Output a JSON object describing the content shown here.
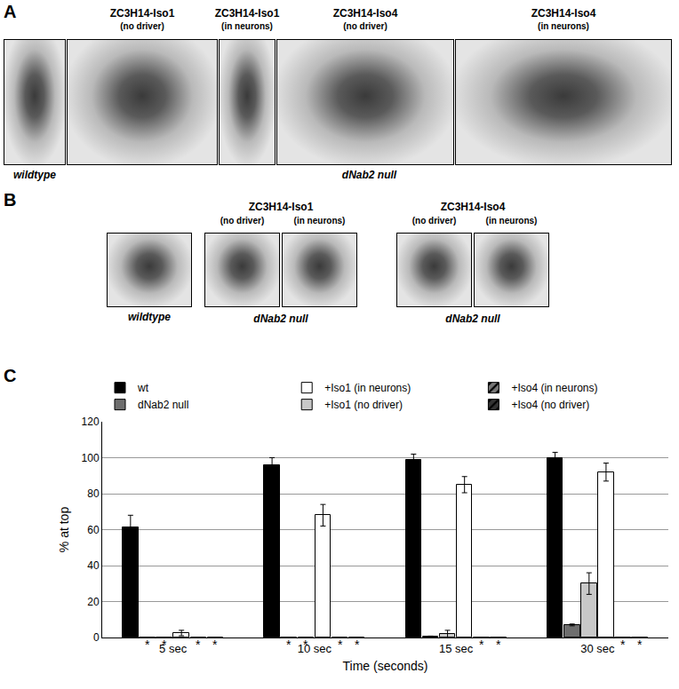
{
  "figure": {
    "panel_A": {
      "label": "A",
      "wildtype": "wildtype",
      "bottom_label": "dNab2 null",
      "images": [
        {
          "title": "ZC3H14-Iso1",
          "subtitle": "(no driver)"
        },
        {
          "title": "ZC3H14-Iso1",
          "subtitle": "(in neurons)"
        },
        {
          "title": "ZC3H14-Iso4",
          "subtitle": "(no driver)"
        },
        {
          "title": "ZC3H14-Iso4",
          "subtitle": "(in neurons)"
        }
      ]
    },
    "panel_B": {
      "label": "B",
      "wildtype": "wildtype",
      "bottom_label": "dNab2 null",
      "groups": [
        {
          "title": "ZC3H14-Iso1",
          "images": [
            "(no driver)",
            "(in neurons)"
          ]
        },
        {
          "title": "ZC3H14-Iso4",
          "images": [
            "(no driver)",
            "(in neurons)"
          ]
        }
      ]
    },
    "panel_C": {
      "label": "C"
    }
  },
  "chart_data": {
    "type": "bar",
    "x_label": "Time (seconds)",
    "y_label": "% at top",
    "categories": [
      "5 sec",
      "10 sec",
      "15 sec",
      "30 sec"
    ],
    "series": [
      {
        "name": "wt",
        "color": "#000000",
        "marker": "solid",
        "values": [
          61,
          96,
          99,
          100
        ],
        "errors": [
          7,
          4,
          3,
          3
        ]
      },
      {
        "name": "dNab2 null",
        "color": "#6e6e6e",
        "marker": "solid",
        "values": [
          0,
          0,
          0.5,
          7
        ],
        "errors": [
          0,
          0,
          0.3,
          0.5
        ]
      },
      {
        "name": "+Iso1 (no driver)",
        "color": "#c8c8c8",
        "marker": "solid",
        "values": [
          0,
          0,
          2,
          30
        ],
        "errors": [
          0,
          0,
          2,
          6
        ]
      },
      {
        "name": "+Iso1 (in neurons)",
        "color": "#ffffff",
        "marker": "solid",
        "values": [
          2.5,
          68,
          85,
          92
        ],
        "errors": [
          1.5,
          6,
          4.5,
          5
        ]
      },
      {
        "name": "+Iso4 (no driver)",
        "color": "#333333",
        "marker": "hatched",
        "values": [
          0,
          0,
          0,
          0
        ],
        "errors": [
          0,
          0,
          0,
          0
        ]
      },
      {
        "name": "+Iso4 (in neurons)",
        "color": "#777777",
        "marker": "hatched",
        "values": [
          0,
          0,
          0,
          0
        ],
        "errors": [
          0,
          0,
          0,
          0
        ]
      }
    ],
    "annotations": [
      {
        "text": "*",
        "category": "5 sec",
        "series": "dNab2 null"
      },
      {
        "text": "*",
        "category": "5 sec",
        "series": "+Iso1 (no driver)"
      },
      {
        "text": "*",
        "category": "5 sec",
        "series": "+Iso4 (no driver)"
      },
      {
        "text": "*",
        "category": "5 sec",
        "series": "+Iso4 (in neurons)"
      },
      {
        "text": "*",
        "category": "10 sec",
        "series": "dNab2 null"
      },
      {
        "text": "*",
        "category": "10 sec",
        "series": "+Iso1 (no driver)"
      },
      {
        "text": "*",
        "category": "10 sec",
        "series": "+Iso4 (no driver)"
      },
      {
        "text": "*",
        "category": "10 sec",
        "series": "+Iso4 (in neurons)"
      },
      {
        "text": "*",
        "category": "15 sec",
        "series": "+Iso4 (no driver)"
      },
      {
        "text": "*",
        "category": "15 sec",
        "series": "+Iso4 (in neurons)"
      },
      {
        "text": "*",
        "category": "30 sec",
        "series": "+Iso4 (no driver)"
      },
      {
        "text": "*",
        "category": "30 sec",
        "series": "+Iso4 (in neurons)"
      }
    ],
    "ylim": [
      0,
      120
    ],
    "yticks": [
      0,
      20,
      40,
      60,
      80,
      100,
      120
    ],
    "grid": true,
    "legend": "top"
  }
}
